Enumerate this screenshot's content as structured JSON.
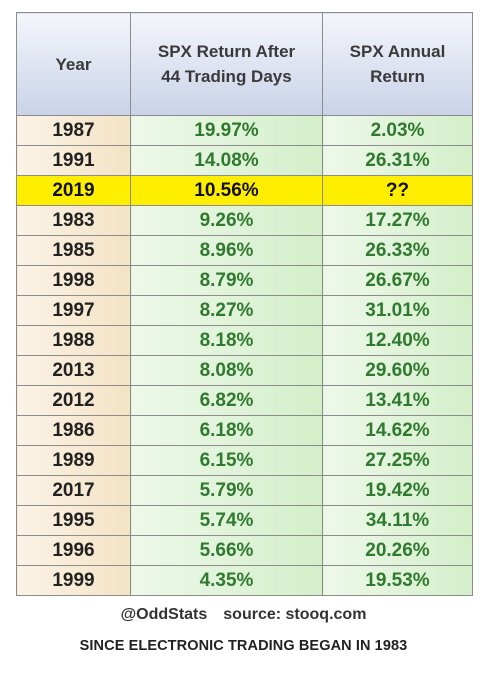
{
  "chart_data": {
    "type": "table",
    "columns": [
      "Year",
      "SPX Return After 44 Trading Days",
      "SPX Annual Return"
    ],
    "header_lines": [
      [
        "Year"
      ],
      [
        "SPX Return After",
        "44 Trading Days"
      ],
      [
        "SPX Annual",
        "Return"
      ]
    ],
    "rows": [
      {
        "year": "1987",
        "return_44d": "19.97%",
        "annual_return": "2.03%"
      },
      {
        "year": "1991",
        "return_44d": "14.08%",
        "annual_return": "26.31%"
      },
      {
        "year": "2019",
        "return_44d": "10.56%",
        "annual_return": "??",
        "highlight": true
      },
      {
        "year": "1983",
        "return_44d": "9.26%",
        "annual_return": "17.27%"
      },
      {
        "year": "1985",
        "return_44d": "8.96%",
        "annual_return": "26.33%"
      },
      {
        "year": "1998",
        "return_44d": "8.79%",
        "annual_return": "26.67%"
      },
      {
        "year": "1997",
        "return_44d": "8.27%",
        "annual_return": "31.01%"
      },
      {
        "year": "1988",
        "return_44d": "8.18%",
        "annual_return": "12.40%"
      },
      {
        "year": "2013",
        "return_44d": "8.08%",
        "annual_return": "29.60%"
      },
      {
        "year": "2012",
        "return_44d": "6.82%",
        "annual_return": "13.41%"
      },
      {
        "year": "1986",
        "return_44d": "6.18%",
        "annual_return": "14.62%"
      },
      {
        "year": "1989",
        "return_44d": "6.15%",
        "annual_return": "27.25%"
      },
      {
        "year": "2017",
        "return_44d": "5.79%",
        "annual_return": "19.42%"
      },
      {
        "year": "1995",
        "return_44d": "5.74%",
        "annual_return": "34.11%"
      },
      {
        "year": "1996",
        "return_44d": "5.66%",
        "annual_return": "20.26%"
      },
      {
        "year": "1999",
        "return_44d": "4.35%",
        "annual_return": "19.53%"
      }
    ]
  },
  "footer": {
    "handle": "@OddStats",
    "source": "source: stooq.com",
    "note": "SINCE ELECTRONIC TRADING BEGAN IN 1983"
  },
  "colors": {
    "highlight": "#ffee00",
    "value_text": "#2f7a2f",
    "header_bg": "#c9d2e8"
  }
}
